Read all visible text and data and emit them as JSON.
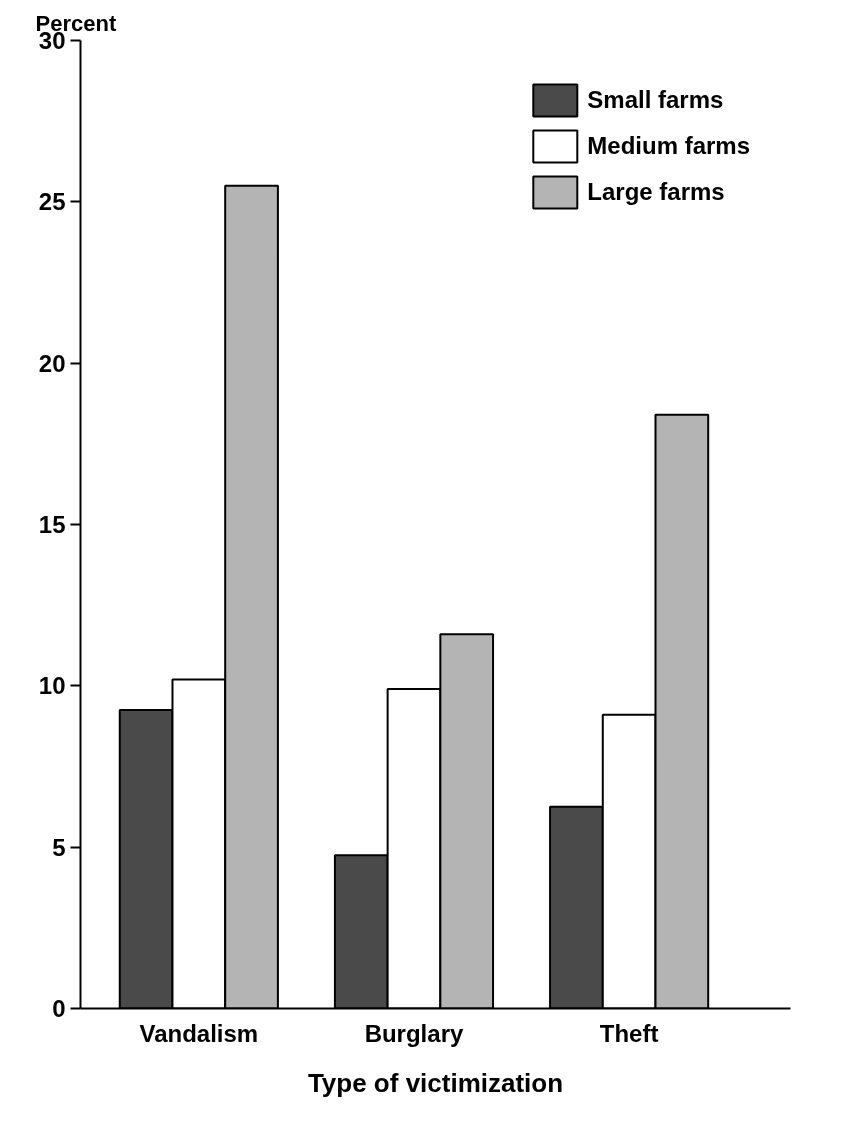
{
  "chart_data": {
    "type": "bar",
    "ylabel": "Percent",
    "xlabel": "Type of victimization",
    "categories": [
      "Vandalism",
      "Burglary",
      "Theft"
    ],
    "series": [
      {
        "name": "Small farms",
        "color": "#4a4a4a",
        "values": [
          9.25,
          4.75,
          6.25
        ]
      },
      {
        "name": "Medium farms",
        "color": "#ffffff",
        "values": [
          10.2,
          9.9,
          9.1
        ]
      },
      {
        "name": "Large farms",
        "color": "#b4b4b4",
        "values": [
          25.5,
          11.6,
          18.4
        ]
      }
    ],
    "ylim": [
      0,
      30
    ],
    "yticks": [
      0,
      5,
      10,
      15,
      20,
      25,
      30
    ],
    "grid": false,
    "legend": "top right"
  }
}
